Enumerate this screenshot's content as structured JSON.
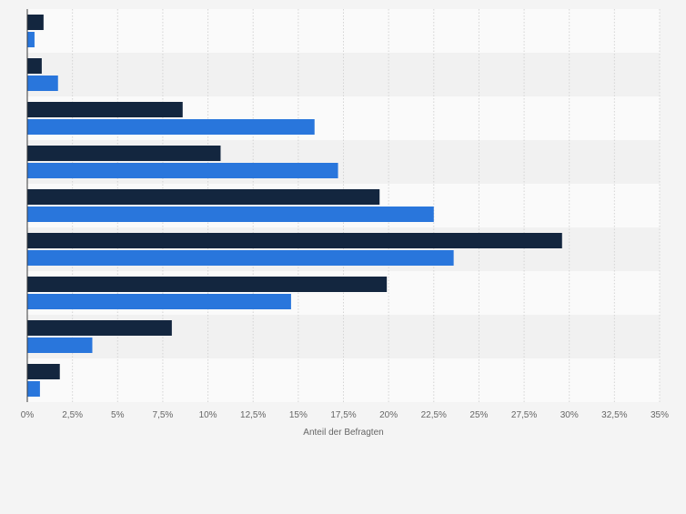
{
  "chart_data": {
    "type": "bar",
    "orientation": "horizontal",
    "categories": [
      "",
      "",
      "",
      "",
      "",
      "",
      "",
      "",
      ""
    ],
    "series": [
      {
        "values": [
          0.9,
          0.8,
          8.6,
          10.7,
          19.5,
          29.6,
          19.9,
          8.0,
          1.8
        ]
      },
      {
        "values": [
          0.4,
          1.7,
          15.9,
          17.2,
          22.5,
          23.6,
          14.6,
          3.6,
          0.7
        ]
      }
    ],
    "x_ticks": [
      "0%",
      "2,5%",
      "5%",
      "7,5%",
      "10%",
      "12,5%",
      "15%",
      "17,5%",
      "20%",
      "22,5%",
      "25%",
      "27,5%",
      "30%",
      "32,5%",
      "35%"
    ],
    "xlabel": "Anteil der Befragten",
    "ylabel": "",
    "title": "",
    "xlim": [
      0,
      35
    ],
    "grid": true,
    "legend": "none",
    "colors": {
      "series_1": "#13263f",
      "series_2": "#2976dc",
      "band_light": "#fafafa",
      "band_dark": "#f1f1f1",
      "grid": "#d4d4d4",
      "axis": "#3a3a3a",
      "tick_text": "#666666",
      "background": "#f4f4f4"
    }
  }
}
